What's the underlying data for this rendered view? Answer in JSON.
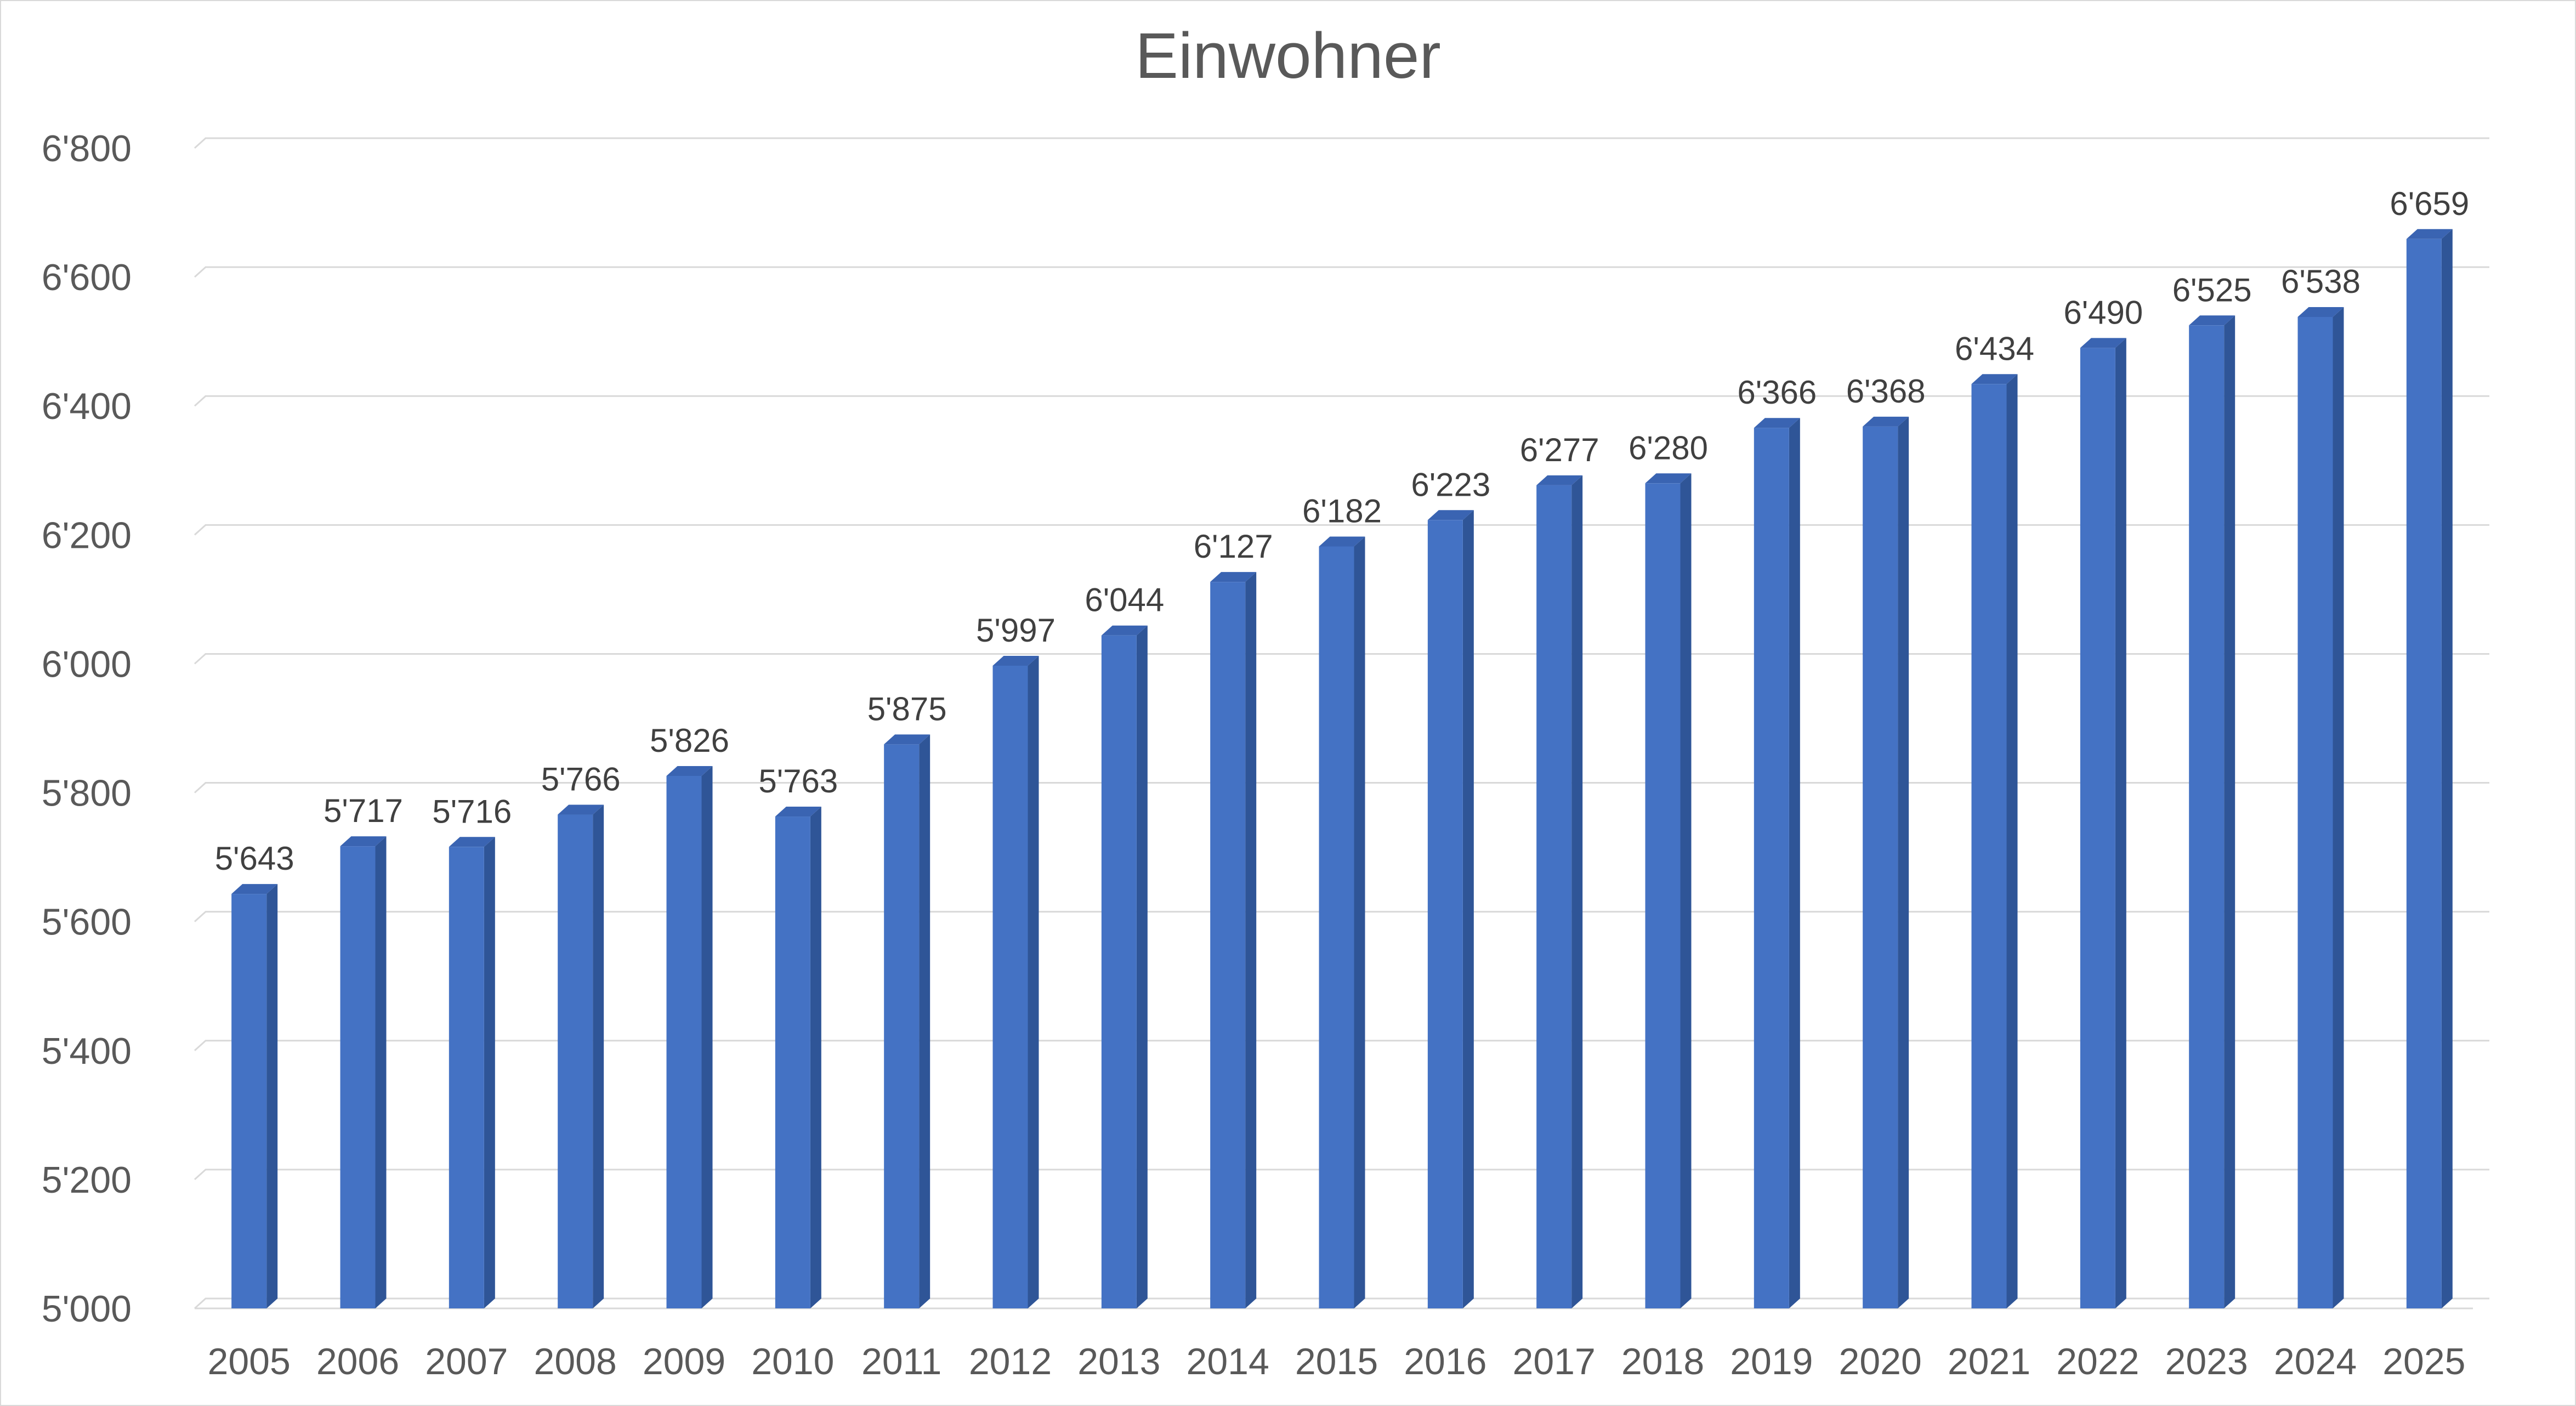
{
  "chart_data": {
    "type": "bar",
    "title": "Einwohner",
    "xlabel": "",
    "ylabel": "",
    "categories": [
      "2005",
      "2006",
      "2007",
      "2008",
      "2009",
      "2010",
      "2011",
      "2012",
      "2013",
      "2014",
      "2015",
      "2016",
      "2017",
      "2018",
      "2019",
      "2020",
      "2021",
      "2022",
      "2023",
      "2024",
      "2025"
    ],
    "values": [
      5643,
      5717,
      5716,
      5766,
      5826,
      5763,
      5875,
      5997,
      6044,
      6127,
      6182,
      6223,
      6277,
      6280,
      6366,
      6368,
      6434,
      6490,
      6525,
      6538,
      6659
    ],
    "data_labels": [
      "5'643",
      "5'717",
      "5'716",
      "5'766",
      "5'826",
      "5'763",
      "5'875",
      "5'997",
      "6'044",
      "6'127",
      "6'182",
      "6'223",
      "6'277",
      "6'280",
      "6'366",
      "6'368",
      "6'434",
      "6'490",
      "6'525",
      "6'538",
      "6'659"
    ],
    "ylim": [
      5000,
      6800
    ],
    "yticks": [
      5000,
      5200,
      5400,
      5600,
      5800,
      6000,
      6200,
      6400,
      6600,
      6800
    ],
    "ytick_labels": [
      "5'000",
      "5'200",
      "5'400",
      "5'600",
      "5'800",
      "6'000",
      "6'200",
      "6'400",
      "6'600",
      "6'800"
    ],
    "grid": true,
    "legend": "none",
    "style": "3d-column",
    "colors": {
      "bar_front": "#4472c4",
      "bar_side": "#2f5597",
      "bar_top": "#3a64b2",
      "grid": "#d9d9d9",
      "axis_text": "#595959",
      "label_text": "#404040",
      "border": "#d9d9d9"
    }
  }
}
